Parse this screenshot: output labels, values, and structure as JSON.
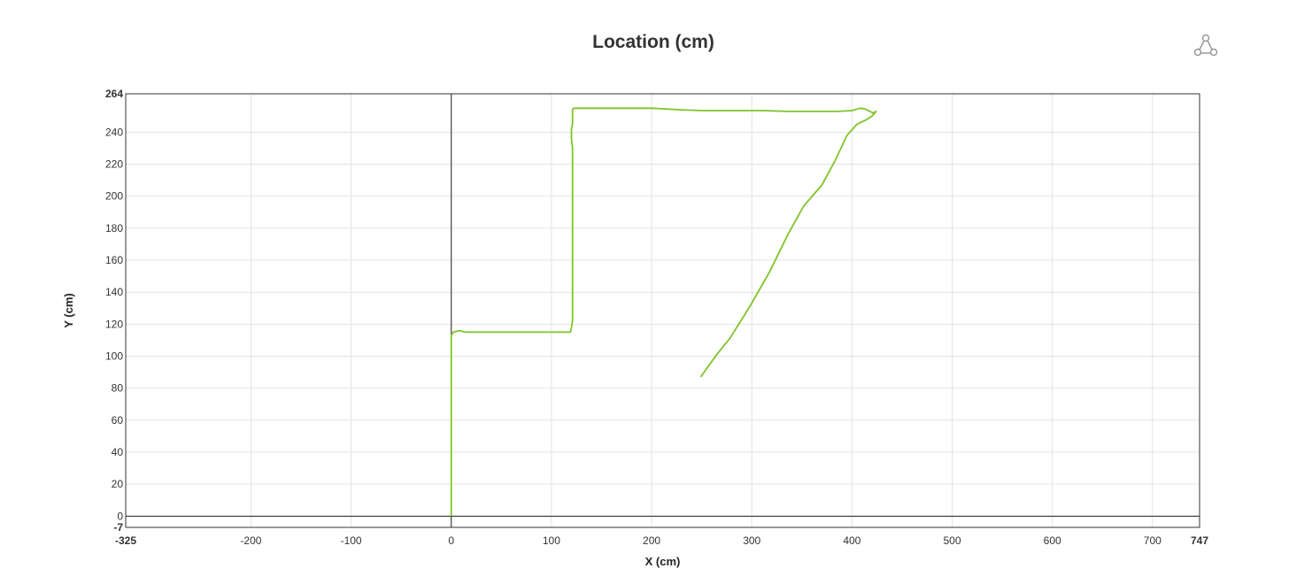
{
  "chart_data": {
    "type": "line",
    "title": "Location (cm)",
    "xlabel": "X (cm)",
    "ylabel": "Y (cm)",
    "xlim": [
      -325,
      747
    ],
    "ylim": [
      -7,
      264
    ],
    "grid": true,
    "legend": "none",
    "x_ticks": [
      "-325",
      "-200",
      "-100",
      "0",
      "100",
      "200",
      "300",
      "400",
      "500",
      "600",
      "700",
      "747"
    ],
    "y_ticks": [
      "-7",
      "0",
      "20",
      "40",
      "60",
      "80",
      "100",
      "120",
      "140",
      "160",
      "180",
      "200",
      "220",
      "240",
      "264"
    ],
    "x_tick_values": [
      -325,
      -200,
      -100,
      0,
      100,
      200,
      300,
      400,
      500,
      600,
      700,
      747
    ],
    "y_tick_values": [
      -7,
      0,
      20,
      40,
      60,
      80,
      100,
      120,
      140,
      160,
      180,
      200,
      220,
      240,
      264
    ],
    "series": [
      {
        "color": "#7fc42a",
        "points": [
          [
            0,
            0
          ],
          [
            0,
            50
          ],
          [
            0,
            113
          ],
          [
            2,
            115
          ],
          [
            8,
            116
          ],
          [
            14,
            115
          ],
          [
            30,
            115
          ],
          [
            60,
            115
          ],
          [
            100,
            115
          ],
          [
            119,
            115
          ],
          [
            120,
            118
          ],
          [
            121,
            122
          ],
          [
            121,
            150
          ],
          [
            121,
            200
          ],
          [
            121,
            230
          ],
          [
            120,
            236
          ],
          [
            120,
            242
          ],
          [
            121,
            245
          ],
          [
            121,
            250
          ],
          [
            121,
            254
          ],
          [
            122,
            255
          ],
          [
            150,
            255
          ],
          [
            200,
            255
          ],
          [
            230,
            254
          ],
          [
            250,
            253.5
          ],
          [
            280,
            253.5
          ],
          [
            312,
            253.5
          ],
          [
            335,
            253
          ],
          [
            360,
            253
          ],
          [
            385,
            253
          ],
          [
            400,
            253.5
          ],
          [
            408,
            255
          ],
          [
            413,
            254.5
          ],
          [
            418,
            253
          ],
          [
            421,
            252
          ],
          [
            424,
            253
          ],
          [
            420,
            250
          ],
          [
            415,
            248
          ],
          [
            405,
            245
          ],
          [
            395,
            238
          ],
          [
            383,
            222
          ],
          [
            370,
            207
          ],
          [
            352,
            194
          ],
          [
            336,
            176
          ],
          [
            318,
            153
          ],
          [
            298,
            131
          ],
          [
            278,
            111
          ],
          [
            265,
            101
          ],
          [
            249,
            87
          ]
        ]
      }
    ]
  },
  "icons": {
    "share": "share-nodes-icon"
  }
}
